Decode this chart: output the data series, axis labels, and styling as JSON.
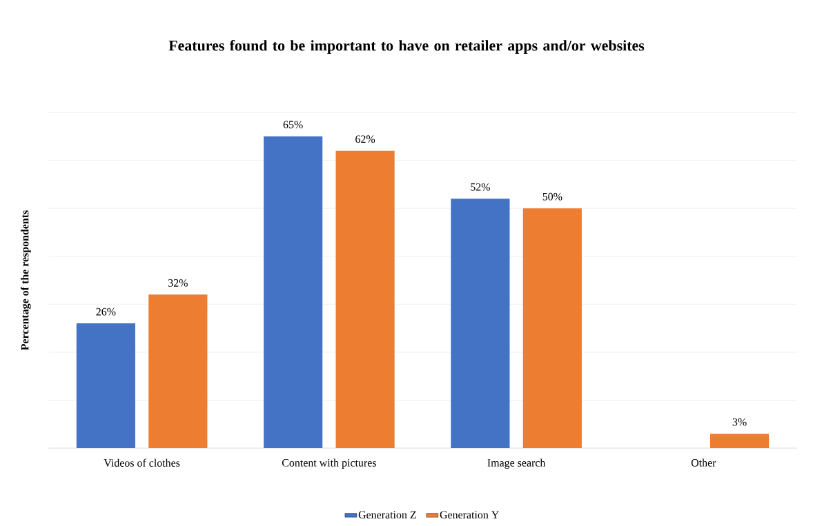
{
  "chart_data": {
    "type": "bar",
    "title": "Features found to be important to have on retailer apps and/or websites",
    "ylabel": "Percentage of the respondents",
    "categories": [
      "Videos of clothes",
      "Content with pictures",
      "Image search",
      "Other"
    ],
    "series": [
      {
        "name": "Generation Z",
        "color": "#4472c4",
        "values": [
          26,
          65,
          52,
          null
        ],
        "value_labels": [
          "26%",
          "65%",
          "52%",
          null
        ]
      },
      {
        "name": "Generation Y",
        "color": "#ed7d31",
        "values": [
          32,
          62,
          50,
          3
        ],
        "value_labels": [
          "32%",
          "62%",
          "50%",
          "3%"
        ]
      }
    ],
    "ylim": [
      0,
      70
    ],
    "yticks": [
      {
        "value": 0,
        "label": null
      },
      {
        "value": 10,
        "label": null
      },
      {
        "value": 20,
        "label": null
      },
      {
        "value": 30,
        "label": null
      },
      {
        "value": 40,
        "label": null
      },
      {
        "value": 50,
        "label": null
      },
      {
        "value": 60,
        "label": null
      },
      {
        "value": 70,
        "label": null
      }
    ],
    "grid": "y",
    "legend": "bottom",
    "tick_labels": "x"
  }
}
